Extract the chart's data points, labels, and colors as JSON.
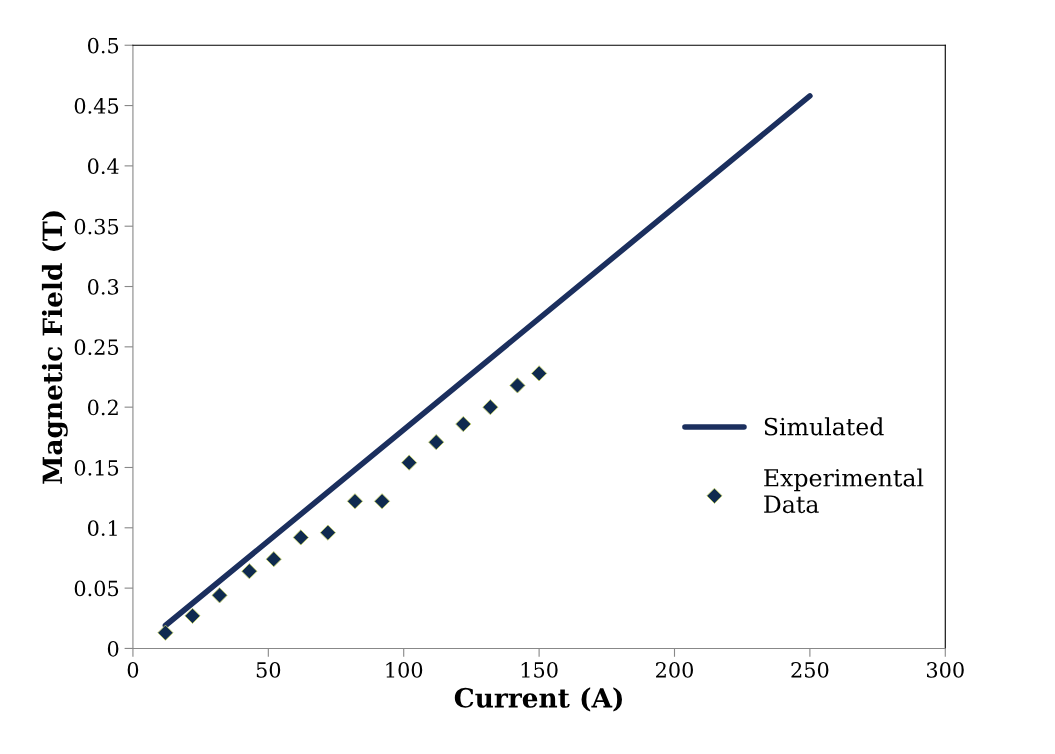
{
  "chart_data": {
    "type": "scatter",
    "xlabel": "Current (A)",
    "ylabel": "Magnetic Field (T)",
    "xlim": [
      0,
      300
    ],
    "xticks": [
      0,
      50,
      100,
      150,
      200,
      250,
      300
    ],
    "ylim": [
      0,
      0.5
    ],
    "yticks": [
      0,
      0.05,
      0.1,
      0.15,
      0.2,
      0.25,
      0.3,
      0.35,
      0.4,
      0.45,
      0.5
    ],
    "grid": false,
    "legend": "right",
    "series": [
      {
        "name": "Simulated",
        "type": "line",
        "color": "#1b2f5e",
        "marker": "none",
        "line_style": "solid",
        "x": [
          12,
          250
        ],
        "values": [
          0.019,
          0.458
        ]
      },
      {
        "name": "Experimental\nData",
        "color": "#0f2a4f",
        "marker": "diamond",
        "x": [
          12,
          22,
          32,
          43,
          52,
          62,
          72,
          82,
          92,
          102,
          112,
          122,
          132,
          142,
          150
        ],
        "values": [
          0.013,
          0.027,
          0.044,
          0.064,
          0.074,
          0.092,
          0.096,
          0.122,
          0.122,
          0.154,
          0.171,
          0.186,
          0.2,
          0.218,
          0.228
        ]
      }
    ]
  }
}
